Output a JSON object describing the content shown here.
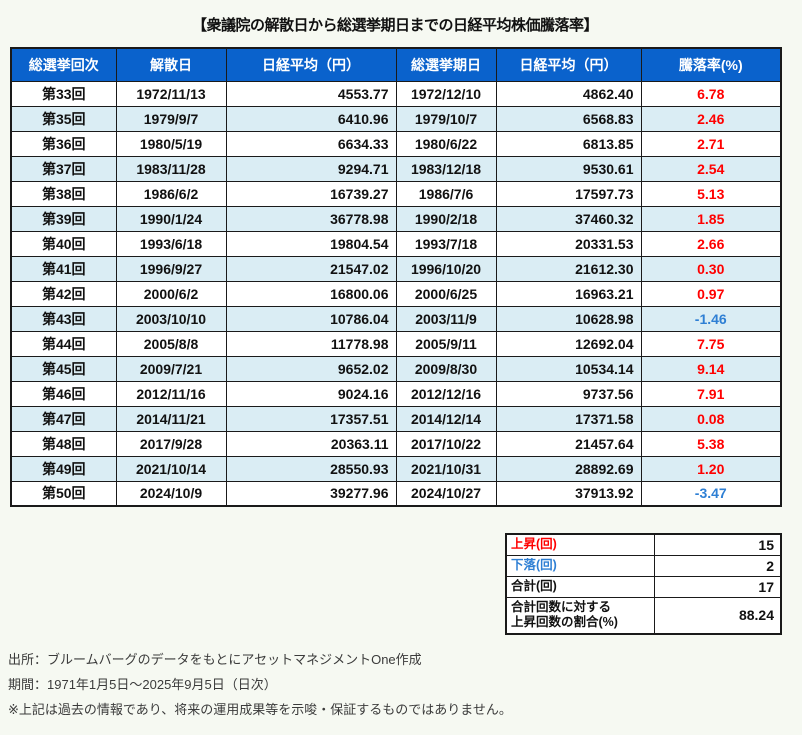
{
  "page": {
    "title": "【衆議院の解散日から総選挙期日までの日経平均株価騰落率】"
  },
  "colors": {
    "header_bg": "#0a62cc",
    "header_text": "#ffffff",
    "stripe_bg": "#daedf4",
    "up_text": "#ff0000",
    "down_text": "#2e7fd4",
    "border": "#1a1a1a",
    "page_bg": "#f6f9f2"
  },
  "chart_data": {
    "type": "table",
    "title": "【衆議院の解散日から総選挙期日までの日経平均株価騰落率】",
    "columns": [
      "総選挙回次",
      "解散日",
      "日経平均（円）",
      "総選挙期日",
      "日経平均（円）",
      "騰落率(%)"
    ],
    "rows": [
      [
        "第33回",
        "1972/11/13",
        "4553.77",
        "1972/12/10",
        "4862.40",
        "6.78"
      ],
      [
        "第35回",
        "1979/9/7",
        "6410.96",
        "1979/10/7",
        "6568.83",
        "2.46"
      ],
      [
        "第36回",
        "1980/5/19",
        "6634.33",
        "1980/6/22",
        "6813.85",
        "2.71"
      ],
      [
        "第37回",
        "1983/11/28",
        "9294.71",
        "1983/12/18",
        "9530.61",
        "2.54"
      ],
      [
        "第38回",
        "1986/6/2",
        "16739.27",
        "1986/7/6",
        "17597.73",
        "5.13"
      ],
      [
        "第39回",
        "1990/1/24",
        "36778.98",
        "1990/2/18",
        "37460.32",
        "1.85"
      ],
      [
        "第40回",
        "1993/6/18",
        "19804.54",
        "1993/7/18",
        "20331.53",
        "2.66"
      ],
      [
        "第41回",
        "1996/9/27",
        "21547.02",
        "1996/10/20",
        "21612.30",
        "0.30"
      ],
      [
        "第42回",
        "2000/6/2",
        "16800.06",
        "2000/6/25",
        "16963.21",
        "0.97"
      ],
      [
        "第43回",
        "2003/10/10",
        "10786.04",
        "2003/11/9",
        "10628.98",
        "-1.46"
      ],
      [
        "第44回",
        "2005/8/8",
        "11778.98",
        "2005/9/11",
        "12692.04",
        "7.75"
      ],
      [
        "第45回",
        "2009/7/21",
        "9652.02",
        "2009/8/30",
        "10534.14",
        "9.14"
      ],
      [
        "第46回",
        "2012/11/16",
        "9024.16",
        "2012/12/16",
        "9737.56",
        "7.91"
      ],
      [
        "第47回",
        "2014/11/21",
        "17357.51",
        "2014/12/14",
        "17371.58",
        "0.08"
      ],
      [
        "第48回",
        "2017/9/28",
        "20363.11",
        "2017/10/22",
        "21457.64",
        "5.38"
      ],
      [
        "第49回",
        "2021/10/14",
        "28550.93",
        "2021/10/31",
        "28892.69",
        "1.20"
      ],
      [
        "第50回",
        "2024/10/9",
        "39277.96",
        "2024/10/27",
        "37913.92",
        "-3.47"
      ]
    ],
    "summary_rows": [
      {
        "label_lines": [
          "上昇(回)"
        ],
        "value": "15",
        "tone": "up"
      },
      {
        "label_lines": [
          "下落(回)"
        ],
        "value": "2",
        "tone": "down"
      },
      {
        "label_lines": [
          "合計(回)"
        ],
        "value": "17",
        "tone": "neutral"
      },
      {
        "label_lines": [
          "合計回数に対する",
          "上昇回数の割合(%)"
        ],
        "value": "88.24",
        "tone": "neutral"
      }
    ]
  },
  "footer": {
    "source": "出所：ブルームバーグのデータをもとにアセットマネジメントOne作成",
    "period": "期間：1971年1月5日～2025年9月5日（日次）",
    "disclaimer": "※上記は過去の情報であり、将来の運用成果等を示唆・保証するものではありません。"
  }
}
